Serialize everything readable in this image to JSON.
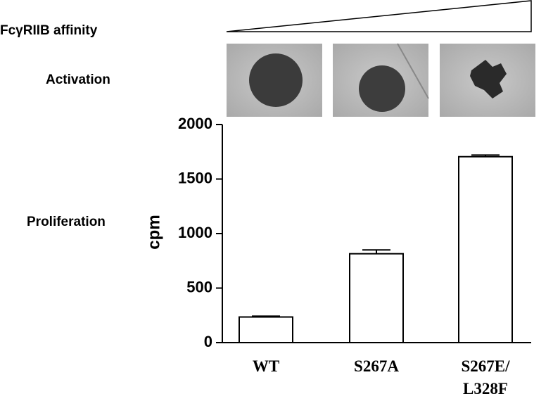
{
  "chart_data": {
    "type": "bar",
    "annotations": [
      "FcγRIIB affinity",
      "Activation",
      "Proliferation"
    ],
    "y_label": "cpm",
    "categories": [
      "WT",
      "S267A",
      "S267E/ L328F"
    ],
    "values": [
      235,
      815,
      1705
    ],
    "errors": [
      8,
      35,
      15
    ],
    "color": "#ffffff",
    "ylim": [
      0,
      2000
    ],
    "yticks": [
      0,
      500,
      1000,
      1500,
      2000
    ]
  }
}
